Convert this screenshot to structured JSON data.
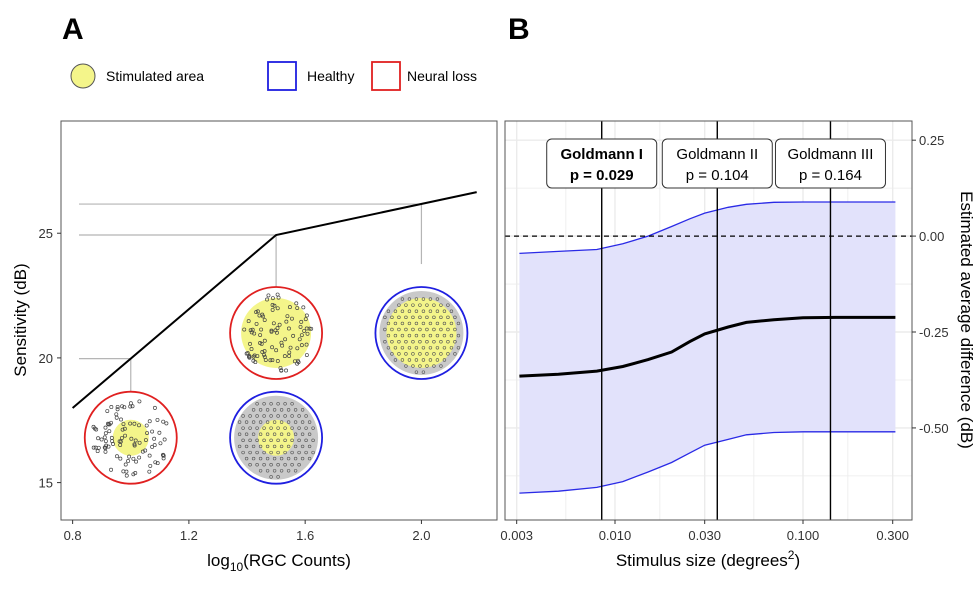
{
  "legend": {
    "stimulated_label": "Stimulated area",
    "healthy_label": "Healthy",
    "neural_loss_label": "Neural loss"
  },
  "colors": {
    "stimulated_fill": "#f4f58a",
    "healthy": "#1f1fe0",
    "neural_loss": "#e02020",
    "ci_fill": "#e2e2fb",
    "ci_line": "#2a2ae6",
    "grid": "#ebebeb",
    "ref_line": "#b5b5b5"
  },
  "chart_data": [
    {
      "panel": "A",
      "type": "line",
      "xlabel_prefix": "log",
      "xlabel_sub": "10",
      "xlabel_suffix": "(RGC Counts)",
      "ylabel": "Sensitivity (dB)",
      "xlim": [
        0.76,
        2.26
      ],
      "ylim": [
        13.5,
        29.5
      ],
      "xticks": [
        0.8,
        1.2,
        1.6,
        2.0
      ],
      "xtick_labels": [
        "0.8",
        "1.2",
        "1.6",
        "2.0"
      ],
      "yticks": [
        15,
        20,
        25
      ],
      "ytick_labels": [
        "15",
        "20",
        "25"
      ],
      "grid": false,
      "curve": {
        "x": [
          0.8,
          1.5,
          2.19
        ],
        "y": [
          17.99,
          24.93,
          26.65
        ]
      },
      "reference_points": [
        {
          "x": 1.0,
          "y": 19.97
        },
        {
          "x": 1.5,
          "y": 24.93
        },
        {
          "x": 2.0,
          "y": 26.17
        }
      ],
      "icons": [
        {
          "x": 1.0,
          "y": 16.8,
          "type": "neural_loss",
          "stimulated": "small"
        },
        {
          "x": 1.5,
          "y": 21.0,
          "type": "neural_loss",
          "stimulated": "large"
        },
        {
          "x": 1.5,
          "y": 16.8,
          "type": "healthy",
          "stimulated": "small"
        },
        {
          "x": 2.0,
          "y": 21.0,
          "type": "healthy",
          "stimulated": "large"
        }
      ]
    },
    {
      "panel": "B",
      "type": "line",
      "xlabel": "Stimulus size (degrees",
      "xlabel_sup": "2",
      "xlabel_close": ")",
      "ylabel": "Estimated average difference (dB)",
      "x_scale": "log",
      "xlim": [
        0.0026,
        0.38
      ],
      "ylim": [
        -0.74,
        0.3
      ],
      "xticks": [
        0.003,
        0.01,
        0.03,
        0.1,
        0.3
      ],
      "xtick_labels": [
        "0.003",
        "0.010",
        "0.030",
        "0.100",
        "0.300"
      ],
      "yticks": [
        0.25,
        0.0,
        -0.25,
        -0.5
      ],
      "ytick_labels": [
        "0.25",
        "0.00",
        "-0.25",
        "-0.50"
      ],
      "y_axis_side": "right",
      "grid": true,
      "zero_line": 0.0,
      "x": [
        0.0031,
        0.005,
        0.008,
        0.011,
        0.015,
        0.02,
        0.025,
        0.03,
        0.04,
        0.05,
        0.07,
        0.1,
        0.15,
        0.2,
        0.31
      ],
      "estimate": [
        -0.365,
        -0.36,
        -0.352,
        -0.34,
        -0.322,
        -0.302,
        -0.275,
        -0.255,
        -0.237,
        -0.225,
        -0.218,
        -0.213,
        -0.212,
        -0.212,
        -0.212
      ],
      "upper": [
        -0.045,
        -0.04,
        -0.035,
        -0.02,
        0.0,
        0.025,
        0.045,
        0.06,
        0.075,
        0.083,
        0.088,
        0.089,
        0.089,
        0.089,
        0.089
      ],
      "lower": [
        -0.67,
        -0.665,
        -0.655,
        -0.64,
        -0.615,
        -0.59,
        -0.565,
        -0.545,
        -0.53,
        -0.518,
        -0.512,
        -0.51,
        -0.51,
        -0.51,
        -0.51
      ],
      "vertical_lines": [
        {
          "x": 0.0085,
          "label": "Goldmann I",
          "p": "p = 0.029",
          "bold": true
        },
        {
          "x": 0.035,
          "label": "Goldmann II",
          "p": "p = 0.104",
          "bold": false
        },
        {
          "x": 0.14,
          "label": "Goldmann III",
          "p": "p = 0.164",
          "bold": false
        }
      ]
    }
  ],
  "panel_labels": {
    "a": "A",
    "b": "B"
  }
}
